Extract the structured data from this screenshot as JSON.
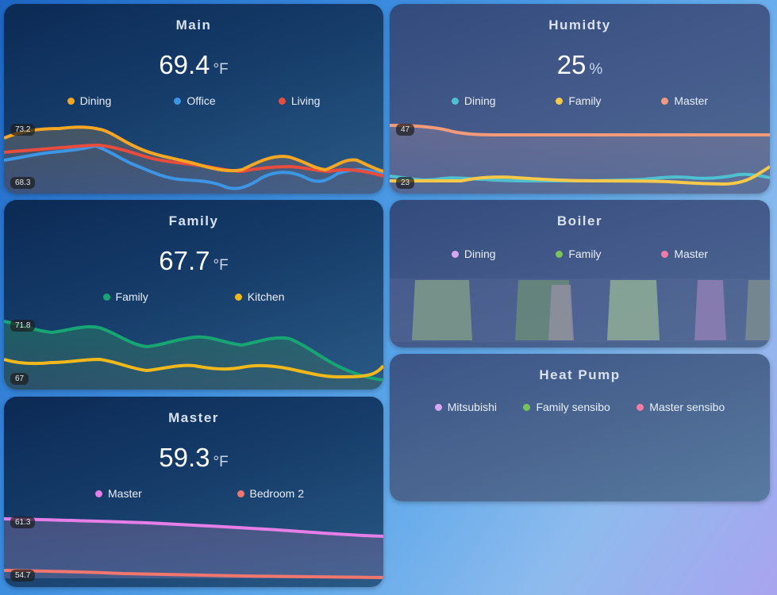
{
  "colors": {
    "orange": "#f5a623",
    "blue": "#3d95e6",
    "red": "#e84c3d",
    "teal": "#4fc0cf",
    "yellow": "#f7c948",
    "salmon": "#f39a7a",
    "violet": "#d8a6f2",
    "green": "#79c35a",
    "pink": "#f27ba8",
    "family_green": "#17a673",
    "kitchen_yellow": "#f1b81c",
    "master_magenta": "#e67ee8",
    "bedroom_red": "#f0766e"
  },
  "cards": {
    "main": {
      "title": "Main",
      "value": "69.4",
      "unit": "°F",
      "legend": [
        {
          "label": "Dining",
          "color": "#f5a623"
        },
        {
          "label": "Office",
          "color": "#3d95e6"
        },
        {
          "label": "Living",
          "color": "#e84c3d"
        }
      ],
      "max_label": "73.2",
      "min_label": "68.3"
    },
    "humidity": {
      "title": "Humidty",
      "value": "25",
      "unit": "%",
      "legend": [
        {
          "label": "Dining",
          "color": "#4fc0cf"
        },
        {
          "label": "Family",
          "color": "#f7c948"
        },
        {
          "label": "Master",
          "color": "#f39a7a"
        }
      ],
      "max_label": "47",
      "min_label": "23"
    },
    "family": {
      "title": "Family",
      "value": "67.7",
      "unit": "°F",
      "legend": [
        {
          "label": "Family",
          "color": "#17a673"
        },
        {
          "label": "Kitchen",
          "color": "#f1b81c"
        }
      ],
      "max_label": "71.8",
      "min_label": "67"
    },
    "boiler": {
      "title": "Boiler",
      "legend": [
        {
          "label": "Dining",
          "color": "#d8a6f2"
        },
        {
          "label": "Family",
          "color": "#79c35a"
        },
        {
          "label": "Master",
          "color": "#f27ba8"
        }
      ]
    },
    "master": {
      "title": "Master",
      "value": "59.3",
      "unit": "°F",
      "legend": [
        {
          "label": "Master",
          "color": "#e67ee8"
        },
        {
          "label": "Bedroom 2",
          "color": "#f0766e"
        }
      ],
      "max_label": "61.3",
      "min_label": "54.7"
    },
    "heat_pump": {
      "title": "Heat Pump",
      "legend": [
        {
          "label": "Mitsubishi",
          "color": "#d8a6f2"
        },
        {
          "label": "Family sensibo",
          "color": "#79c35a"
        },
        {
          "label": "Master sensibo",
          "color": "#f27ba8"
        }
      ]
    }
  }
}
